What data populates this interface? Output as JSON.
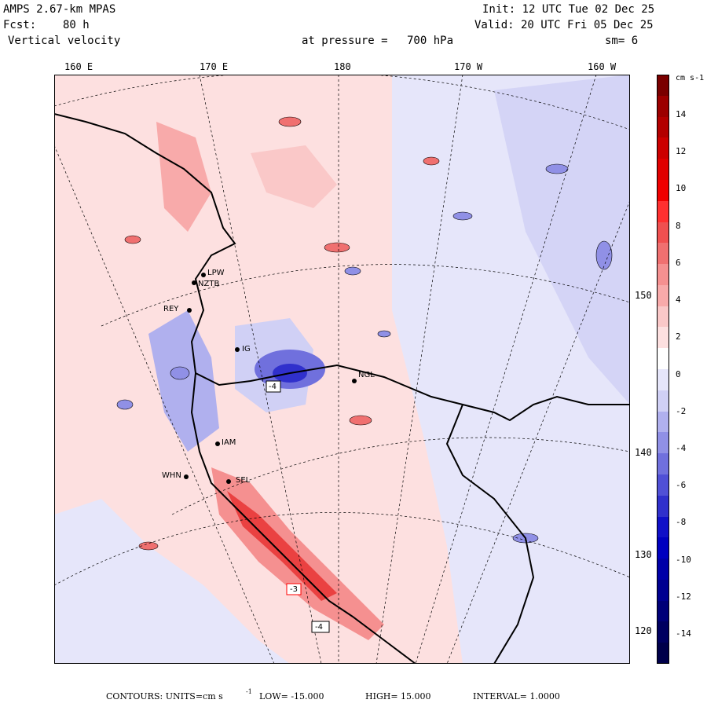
{
  "header": {
    "model": "AMPS 2.67-km MPAS",
    "fcst_label": "Fcst:",
    "fcst_value": "80 h",
    "field": "Vertical velocity",
    "init": "Init: 12 UTC Tue 02 Dec 25",
    "valid": "Valid: 20 UTC Fri 05 Dec 25",
    "level_label": "at pressure =",
    "level_value": "700 hPa",
    "smoothing": "sm= 6"
  },
  "longitude_labels": [
    "160 E",
    "170 E",
    "180",
    "170 W",
    "160 W"
  ],
  "latitude_labels": [
    "150 W",
    "140 W",
    "130 W",
    "120 W"
  ],
  "stations": [
    {
      "name": "LPW"
    },
    {
      "name": "NZTB"
    },
    {
      "name": "REY"
    },
    {
      "name": "IG"
    },
    {
      "name": "NGL"
    },
    {
      "name": "IAM"
    },
    {
      "name": "WHN"
    },
    {
      "name": "SEL"
    }
  ],
  "map_annotations": [
    "-4",
    "-3",
    "-4"
  ],
  "colorbar": {
    "units": "cm s-1",
    "ticks": [
      "14",
      "12",
      "10",
      "8",
      "6",
      "4",
      "2",
      "0",
      "-2",
      "-4",
      "-6",
      "-8",
      "-10",
      "-12",
      "-14"
    ],
    "colors": [
      "#7a0000",
      "#9c0000",
      "#b30000",
      "#cc0000",
      "#e00000",
      "#f00000",
      "#ff3030",
      "#f05050",
      "#f07070",
      "#f59090",
      "#f8aaaa",
      "#fac8c8",
      "#fde0e0",
      "#ffffff",
      "#e6e6fa",
      "#d0d0f5",
      "#b0b0ee",
      "#9090e6",
      "#7070dd",
      "#5050d6",
      "#3030cc",
      "#1010c8",
      "#0000c0",
      "#0000a8",
      "#000090",
      "#000078",
      "#000060",
      "#00004a"
    ]
  },
  "footer": {
    "contours": "CONTOURS:  UNITS=cm s",
    "units_sup": "-1",
    "low": "LOW= -15.000",
    "high": "HIGH=  15.000",
    "interval": "INTERVAL=   1.0000"
  }
}
